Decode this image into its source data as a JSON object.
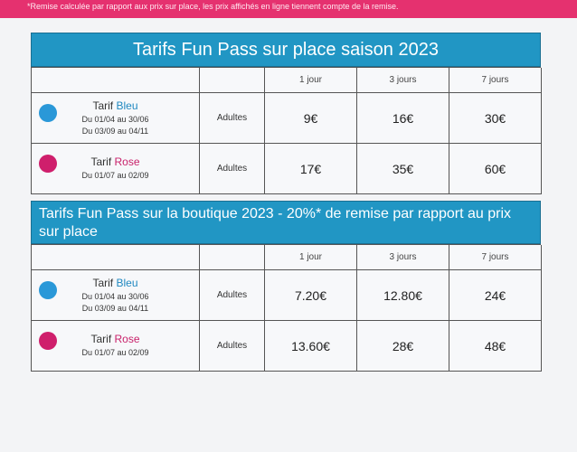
{
  "banner": {
    "note": "*Remise calculée par rapport aux prix sur place, les prix affichés en ligne tiennent compte de la remise.",
    "color": "#e5316f"
  },
  "colors": {
    "header_blue": "#2196c4",
    "dot_blue": "#2a98d8",
    "dot_rose": "#cf1f6c"
  },
  "table1": {
    "title": "Tarifs Fun Pass sur place saison 2023",
    "columns": [
      "1 jour",
      "3 jours",
      "7 jours"
    ],
    "rows": [
      {
        "tier_prefix": "Tarif",
        "tier_name": "Bleu",
        "dates": [
          "Du 01/04 au 30/06",
          "Du 03/09 au 04/11"
        ],
        "category": "Adultes",
        "prices": [
          "9€",
          "16€",
          "30€"
        ]
      },
      {
        "tier_prefix": "Tarif",
        "tier_name": "Rose",
        "dates": [
          "Du 01/07 au 02/09"
        ],
        "category": "Adultes",
        "prices": [
          "17€",
          "35€",
          "60€"
        ]
      }
    ]
  },
  "table2": {
    "title": "Tarifs Fun Pass sur la boutique 2023  - 20%* de remise par rapport au prix sur place",
    "columns": [
      "1 jour",
      "3 jours",
      "7 jours"
    ],
    "rows": [
      {
        "tier_prefix": "Tarif",
        "tier_name": "Bleu",
        "dates": [
          "Du 01/04 au 30/06",
          "Du 03/09 au 04/11"
        ],
        "category": "Adultes",
        "prices": [
          "7.20€",
          "12.80€",
          "24€"
        ]
      },
      {
        "tier_prefix": "Tarif",
        "tier_name": "Rose",
        "dates": [
          "Du 01/07 au 02/09"
        ],
        "category": "Adultes",
        "prices": [
          "13.60€",
          "28€",
          "48€"
        ]
      }
    ]
  }
}
